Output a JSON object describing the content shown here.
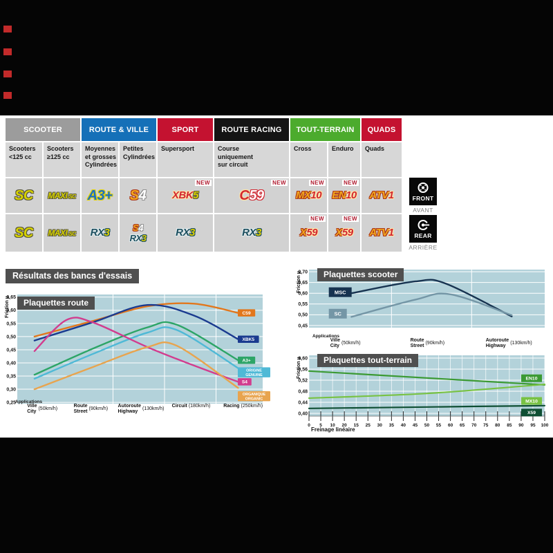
{
  "table": {
    "categories": [
      {
        "label": "SCOOTER",
        "color": "#9c9c9c",
        "cols": 2
      },
      {
        "label": "ROUTE & VILLE",
        "color": "#1570b8",
        "cols": 2
      },
      {
        "label": "SPORT",
        "color": "#c41230",
        "cols": 1
      },
      {
        "label": "ROUTE RACING",
        "color": "#141414",
        "cols": 1
      },
      {
        "label": "TOUT-TERRAIN",
        "color": "#4cab2d",
        "cols": 2
      },
      {
        "label": "QUADS",
        "color": "#c41230",
        "cols": 1
      }
    ],
    "subheaders": [
      [
        "Scooters",
        "<125 cc"
      ],
      [
        "Scooters",
        "≥125 cc"
      ],
      [
        "Moyennes",
        "et grosses",
        "Cylindrées"
      ],
      [
        "Petites",
        "Cylindrées"
      ],
      [
        "Supersport"
      ],
      [
        "Course",
        "uniquement",
        "sur circuit"
      ],
      [
        "Cross"
      ],
      [
        "Enduro"
      ],
      [
        "Quads"
      ]
    ],
    "new_label": "NEW",
    "front_row": [
      {
        "logos": [
          [
            {
              "t": "SC",
              "s": "y",
              "sz": "lg"
            }
          ]
        ],
        "new": false
      },
      {
        "logos": [
          [
            {
              "t": "MAXI",
              "s": "y",
              "sz": "mx"
            },
            {
              "t": "-SC",
              "s": "y",
              "sz": "sub"
            }
          ]
        ],
        "new": false
      },
      {
        "logos": [
          [
            {
              "t": "A3+",
              "s": "b",
              "sz": "lg"
            }
          ]
        ],
        "new": false
      },
      {
        "logos": [
          [
            {
              "t": "S",
              "s": "o",
              "sz": "lg"
            },
            {
              "t": "4",
              "s": "w",
              "sz": "lg"
            }
          ]
        ],
        "new": false
      },
      {
        "logos": [
          [
            {
              "t": "XBK",
              "s": "r",
              "sz": "md"
            },
            {
              "t": "5",
              "s": "y",
              "sz": "md"
            }
          ]
        ],
        "new": true
      },
      {
        "logos": [
          [
            {
              "t": "C",
              "s": "r",
              "sz": "lg"
            },
            {
              "t": "59",
              "s": "wr",
              "sz": "lg"
            }
          ]
        ],
        "new": true
      },
      {
        "logos": [
          [
            {
              "t": "MX",
              "s": "o",
              "sz": "md"
            },
            {
              "t": "10",
              "s": "r",
              "sz": "md"
            }
          ]
        ],
        "new": true
      },
      {
        "logos": [
          [
            {
              "t": "EN",
              "s": "o",
              "sz": "md"
            },
            {
              "t": "10",
              "s": "r",
              "sz": "md"
            }
          ]
        ],
        "new": true
      },
      {
        "logos": [
          [
            {
              "t": "ATV",
              "s": "o",
              "sz": "md"
            },
            {
              "t": "1",
              "s": "r",
              "sz": "md"
            }
          ]
        ],
        "new": false
      }
    ],
    "rear_row": [
      {
        "logos": [
          [
            {
              "t": "SC",
              "s": "y",
              "sz": "lg"
            }
          ]
        ],
        "new": false
      },
      {
        "logos": [
          [
            {
              "t": "MAXI",
              "s": "y",
              "sz": "mx"
            },
            {
              "t": "-SC",
              "s": "y",
              "sz": "sub"
            }
          ]
        ],
        "new": false
      },
      {
        "logos": [
          [
            {
              "t": "RX",
              "s": "t",
              "sz": "md"
            },
            {
              "t": "3",
              "s": "y2",
              "sz": "md"
            }
          ]
        ],
        "new": false
      },
      {
        "logos": [
          [
            {
              "t": "S",
              "s": "o",
              "sz": "sm"
            },
            {
              "t": "4",
              "s": "w",
              "sz": "sm"
            }
          ],
          [
            {
              "t": "RX",
              "s": "t",
              "sz": "sm"
            },
            {
              "t": "3",
              "s": "y2",
              "sz": "sm"
            }
          ]
        ],
        "new": false
      },
      {
        "logos": [
          [
            {
              "t": "RX",
              "s": "t",
              "sz": "md"
            },
            {
              "t": "3",
              "s": "y2",
              "sz": "md"
            }
          ]
        ],
        "new": false
      },
      {
        "logos": [
          [
            {
              "t": "RX",
              "s": "t",
              "sz": "md"
            },
            {
              "t": "3",
              "s": "y2",
              "sz": "md"
            }
          ]
        ],
        "new": false
      },
      {
        "logos": [
          [
            {
              "t": "X",
              "s": "o",
              "sz": "md"
            },
            {
              "t": "59",
              "s": "r",
              "sz": "md"
            }
          ]
        ],
        "new": true
      },
      {
        "logos": [
          [
            {
              "t": "X",
              "s": "o",
              "sz": "md"
            },
            {
              "t": "59",
              "s": "r",
              "sz": "md"
            }
          ]
        ],
        "new": true
      },
      {
        "logos": [
          [
            {
              "t": "ATV",
              "s": "o",
              "sz": "md"
            },
            {
              "t": "1",
              "s": "r",
              "sz": "md"
            }
          ]
        ],
        "new": false
      }
    ]
  },
  "side": {
    "front": "FRONT",
    "front_sub": "AVANT",
    "rear": "REAR",
    "rear_sub": "ARRIÈRE"
  },
  "section_title": "Résultats des bancs d'essais",
  "chart_data": [
    {
      "type": "line",
      "title": "Plaquettes route",
      "ylabel": "Friction µ",
      "xlabel": "Applications",
      "ylim": [
        0.25,
        0.65
      ],
      "ytick_step": 0.05,
      "grid_x": [
        0.39,
        0.6,
        0.81
      ],
      "x_categories": [
        {
          "fr": "Ville",
          "en": "City",
          "speed": "(50km/h)",
          "x": 0.04
        },
        {
          "fr": "Route",
          "en": "Street",
          "speed": "(90km/h)",
          "x": 0.23
        },
        {
          "fr": "Autoroute",
          "en": "Highway",
          "speed": "(130km/h)",
          "x": 0.41
        },
        {
          "fr": "Circuit",
          "en": "",
          "speed": "(180km/h)",
          "x": 0.63
        },
        {
          "fr": "Racing",
          "en": "",
          "speed": "(250km/h)",
          "x": 0.84
        }
      ],
      "series": [
        {
          "name": "C59",
          "color": "#e2771c",
          "label_lines": [
            "C59"
          ],
          "x": [
            0.07,
            0.31,
            0.53,
            0.72,
            0.9
          ],
          "y": [
            0.5,
            0.56,
            0.615,
            0.625,
            0.59
          ],
          "label_dy": 0
        },
        {
          "name": "XBK5",
          "color": "#1a3a8f",
          "label_lines": [
            "XBK5"
          ],
          "x": [
            0.07,
            0.31,
            0.53,
            0.72,
            0.9
          ],
          "y": [
            0.485,
            0.555,
            0.62,
            0.58,
            0.49
          ],
          "label_dy": 0
        },
        {
          "name": "A3+",
          "color": "#2da567",
          "label_lines": [
            "A3+"
          ],
          "x": [
            0.07,
            0.31,
            0.53,
            0.65,
            0.9
          ],
          "y": [
            0.355,
            0.455,
            0.535,
            0.545,
            0.41
          ],
          "label_dy": 0
        },
        {
          "name": "ORIGINE GENUINE",
          "color": "#4fb9d6",
          "label_lines": [
            "ORIGINE",
            "GENUINE"
          ],
          "x": [
            0.07,
            0.31,
            0.53,
            0.65,
            0.9
          ],
          "y": [
            0.34,
            0.435,
            0.515,
            0.525,
            0.38
          ],
          "label_dy": 6
        },
        {
          "name": "S4",
          "color": "#d23c8e",
          "label_lines": [
            "S4"
          ],
          "x": [
            0.07,
            0.2,
            0.31,
            0.53,
            0.72,
            0.9
          ],
          "y": [
            0.445,
            0.563,
            0.553,
            0.46,
            0.39,
            0.328
          ],
          "label_dy": 0
        },
        {
          "name": "ORGANIQUE ORGANIC",
          "color": "#e8a44e",
          "label_lines": [
            "ORGANIQUE",
            "ORGANIC"
          ],
          "x": [
            0.07,
            0.31,
            0.53,
            0.65,
            0.9
          ],
          "y": [
            0.3,
            0.385,
            0.46,
            0.465,
            0.305
          ],
          "label_dy": 12
        }
      ]
    },
    {
      "type": "line",
      "title": "Plaquettes scooter",
      "ylabel": "Friction µ",
      "xlabel": "Applications",
      "ylim": [
        0.45,
        0.7
      ],
      "ytick_step": 0.05,
      "grid_x": [
        0.35,
        0.69
      ],
      "x_categories": [
        {
          "fr": "Ville",
          "en": "City",
          "speed": "(50km/h)",
          "x": 0.09
        },
        {
          "fr": "Route",
          "en": "Street",
          "speed": "(90km/h)",
          "x": 0.43
        },
        {
          "fr": "Autoroute",
          "en": "Highway",
          "speed": "(130km/h)",
          "x": 0.75
        }
      ],
      "series": [
        {
          "name": "MSC",
          "color": "#173350",
          "x": [
            0.18,
            0.45,
            0.58,
            0.86
          ],
          "y": [
            0.6,
            0.655,
            0.645,
            0.492
          ],
          "inline_label": {
            "x": 0.09,
            "v": 0.605
          }
        },
        {
          "name": "SC",
          "color": "#7496a6",
          "x": [
            0.18,
            0.45,
            0.6,
            0.86
          ],
          "y": [
            0.49,
            0.57,
            0.595,
            0.498
          ],
          "inline_label": {
            "x": 0.09,
            "v": 0.505
          }
        }
      ]
    },
    {
      "type": "line",
      "title": "Plaquettes tout-terrain",
      "ylabel": "Friction µ",
      "xlabel": "Freinage linéaire",
      "ylim": [
        0.4,
        0.6
      ],
      "ytick_step": 0.04,
      "xticks": [
        "0",
        "5",
        "10",
        "20",
        "15",
        "25",
        "30",
        "35",
        "40",
        "45",
        "50",
        "55",
        "60",
        "65",
        "70",
        "75",
        "80",
        "85",
        "90",
        "95",
        "100"
      ],
      "series": [
        {
          "name": "EN10",
          "color": "#3b9a33",
          "x": [
            0,
            0.5,
            1
          ],
          "y": [
            0.553,
            0.528,
            0.503
          ],
          "label_v": 0.527
        },
        {
          "name": "MX10",
          "color": "#78c243",
          "x": [
            0,
            0.5,
            1
          ],
          "y": [
            0.455,
            0.472,
            0.505
          ],
          "label_v": 0.445
        },
        {
          "name": "X59",
          "color": "#0f4f33",
          "x": [
            0,
            0.5,
            1
          ],
          "y": [
            0.418,
            0.423,
            0.428
          ],
          "label_v": 0.403
        }
      ]
    }
  ]
}
